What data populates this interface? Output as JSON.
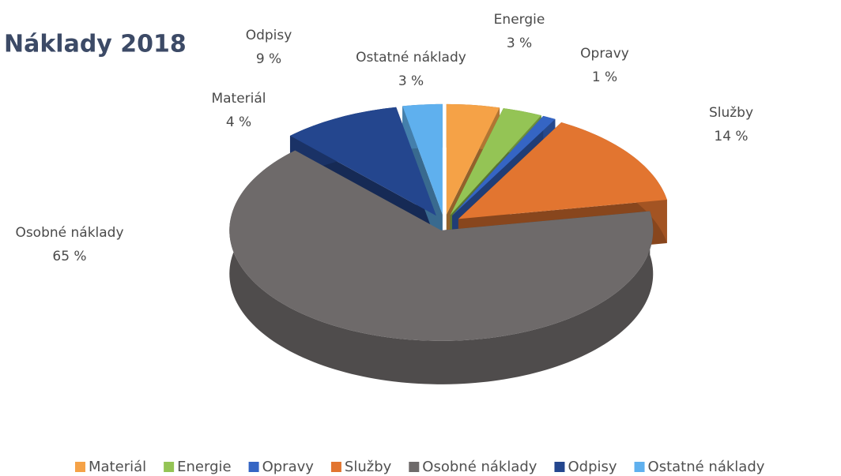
{
  "chart_data": {
    "type": "pie",
    "title": "Náklady 2018",
    "categories": [
      "Materiál",
      "Energie",
      "Opravy",
      "Služby",
      "Osobné náklady",
      "Odpisy",
      "Ostatné náklady"
    ],
    "values": [
      4,
      3,
      1,
      14,
      65,
      9,
      3
    ],
    "value_labels": [
      "4 %",
      "3 %",
      "1 %",
      "14 %",
      "65 %",
      "9 %",
      "3 %"
    ],
    "colors": [
      "#f5a247",
      "#94c455",
      "#3565c4",
      "#e27530",
      "#6e6a6a",
      "#24468e",
      "#5fb0ee"
    ],
    "legend": "bottom"
  }
}
